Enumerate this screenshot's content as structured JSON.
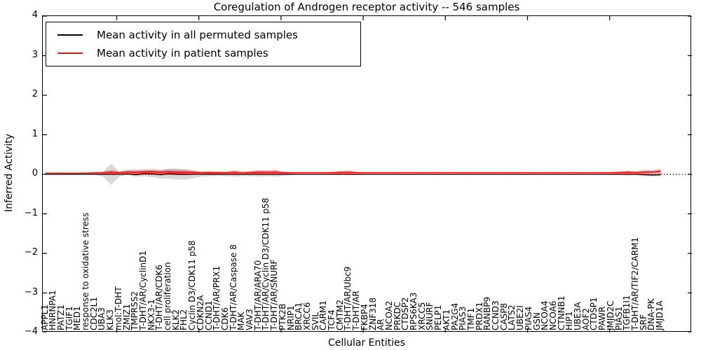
{
  "title": "Coregulation of Androgen receptor activity -- 546 samples",
  "axes": {
    "xlabel": "Cellular Entities",
    "ylabel": "Inferred Activity"
  },
  "legend": {
    "items": [
      {
        "label": "Mean activity in all permuted samples",
        "color": "#000000"
      },
      {
        "label": "Mean activity in patient samples",
        "color": "#ff0000"
      }
    ]
  },
  "chart_data": {
    "type": "line",
    "title": "Coregulation of Androgen receptor activity -- 546 samples",
    "xlabel": "Cellular Entities",
    "ylabel": "Inferred Activity",
    "ylim": [
      -4,
      4
    ],
    "yticks": [
      {
        "v": 4,
        "label": "4"
      },
      {
        "v": 3,
        "label": "3"
      },
      {
        "v": 2,
        "label": "2"
      },
      {
        "v": 1,
        "label": "1"
      },
      {
        "v": 0,
        "label": "0"
      },
      {
        "v": -1,
        "label": "−1"
      },
      {
        "v": -2,
        "label": "−2"
      },
      {
        "v": -3,
        "label": "−3"
      },
      {
        "v": -4,
        "label": "−4"
      }
    ],
    "grid": false,
    "legend_position": "upper left",
    "zero_line": {
      "show": true,
      "style": "dotted",
      "color": "#000000"
    },
    "categories": [
      "APPL1",
      "HNRNPA1",
      "PATZ1",
      "TGIF1",
      "MED1",
      "response to oxidative stress",
      "CDC2L1",
      "UBA3",
      "KLK3",
      "mol:T-DHT",
      "ZMIZ1",
      "TMPRSS2",
      "T-DHT/AR/CyclinD1",
      "NKX3-1",
      "T-DHT/AR/CDK6",
      "cell proliferation",
      "KLK2",
      "FHL2",
      "Cyclin D3/CDK11 p58",
      "CDKN2A",
      "CCND1",
      "T-DHT/AR/PRX1",
      "CDK6",
      "T-DHT/AR/Caspase 8",
      "MAK",
      "VAV3",
      "T-DHT/AR/ARA70",
      "T-DHT/AR/Cyclin D3/CDK11 p58",
      "T-DHT/AR/SNURF",
      "PTK2B",
      "NRIP1",
      "BRCA1",
      "XRCC6",
      "SVIL",
      "CARM1",
      "TCF4",
      "CMTM2",
      "T-DHT/AR/Ubc9",
      "T-DHT/AR",
      "FKBP4",
      "ZNF318",
      "AR",
      "NCOA2",
      "PRKDC",
      "CTDSP2",
      "RPS6KA3",
      "XRCC5",
      "SNURF",
      "PELP1",
      "AKT1",
      "PA2G4",
      "PIAS3",
      "TMF1",
      "PRDX1",
      "RANBP9",
      "CCND3",
      "CASP8",
      "LATS2",
      "UBE2I",
      "PIAS4",
      "GSN",
      "NCOA4",
      "NCOA6",
      "CTNNB1",
      "HIP1",
      "UBE3A",
      "AOF2",
      "CTDSP1",
      "PAWR",
      "JMJD2C",
      "PIAS1",
      "TGFB1I1",
      "T-DHT/AR/TIF2/CARM1",
      "SRF",
      "DNA-PK",
      "JMJD1A"
    ],
    "series": [
      {
        "name": "Mean activity in all permuted samples",
        "color": "#000000",
        "values": [
          0,
          0,
          0,
          0,
          0,
          0,
          0,
          0,
          0,
          0,
          0.01,
          -0.01,
          0.02,
          0.01,
          -0.01,
          0.015,
          0.005,
          -0.005,
          0,
          0,
          0,
          0,
          0,
          0,
          0,
          0,
          0,
          0,
          0,
          0,
          0,
          0,
          0,
          0,
          0,
          0,
          0,
          0,
          0,
          0,
          0,
          0,
          0,
          0,
          0,
          0,
          0,
          0,
          0,
          0,
          0,
          0,
          0,
          0,
          0,
          0,
          0,
          0,
          0,
          0,
          0,
          0,
          0,
          0,
          0,
          0,
          0,
          0,
          0,
          0,
          0,
          0,
          0,
          -0.01,
          -0.02,
          -0.01
        ]
      },
      {
        "name": "Mean activity in patient samples",
        "color": "#ff0000",
        "values": [
          0.03,
          0.03,
          0.03,
          0.03,
          0.03,
          0.03,
          0.035,
          0.04,
          0.05,
          0.04,
          0.06,
          0.05,
          0.06,
          0.06,
          0.05,
          0.06,
          0.05,
          0.05,
          0.045,
          0.04,
          0.04,
          0.04,
          0.04,
          0.05,
          0.04,
          0.045,
          0.05,
          0.05,
          0.055,
          0.04,
          0.04,
          0.04,
          0.04,
          0.04,
          0.04,
          0.04,
          0.045,
          0.05,
          0.04,
          0.04,
          0.04,
          0.04,
          0.04,
          0.04,
          0.04,
          0.04,
          0.04,
          0.04,
          0.04,
          0.04,
          0.04,
          0.04,
          0.04,
          0.04,
          0.04,
          0.04,
          0.04,
          0.04,
          0.04,
          0.04,
          0.04,
          0.04,
          0.04,
          0.04,
          0.04,
          0.04,
          0.04,
          0.04,
          0.04,
          0.04,
          0.045,
          0.05,
          0.045,
          0.055,
          0.06,
          0.075
        ]
      }
    ],
    "bands": {
      "permuted_color": "rgba(0,0,0,0.15)",
      "patient_color_outer": "rgba(255,0,0,0.22)",
      "patient_color_inner": "rgba(255,0,0,0.40)",
      "inner_fraction": 0.5,
      "permuted_halfwidth": [
        0.01,
        0.01,
        0.01,
        0.01,
        0.01,
        0.01,
        0.015,
        0.06,
        0.27,
        0.06,
        0.03,
        0.05,
        0.07,
        0.08,
        0.1,
        0.13,
        0.14,
        0.13,
        0.1,
        0.06,
        0.05,
        0.04,
        0.05,
        0.06,
        0.04,
        0.05,
        0.06,
        0.05,
        0.06,
        0.04,
        0.02,
        0.015,
        0.012,
        0.012,
        0.012,
        0.012,
        0.015,
        0.02,
        0.015,
        0.012,
        0.012,
        0.012,
        0.012,
        0.012,
        0.012,
        0.012,
        0.012,
        0.012,
        0.012,
        0.012,
        0.012,
        0.012,
        0.012,
        0.012,
        0.012,
        0.012,
        0.012,
        0.012,
        0.012,
        0.012,
        0.012,
        0.012,
        0.012,
        0.012,
        0.012,
        0.012,
        0.012,
        0.012,
        0.012,
        0.012,
        0.02,
        0.03,
        0.025,
        0.04,
        0.035,
        0.04
      ],
      "patient_halfwidth": [
        0.015,
        0.015,
        0.015,
        0.015,
        0.015,
        0.015,
        0.02,
        0.03,
        0.06,
        0.04,
        0.06,
        0.08,
        0.07,
        0.08,
        0.075,
        0.07,
        0.08,
        0.07,
        0.05,
        0.035,
        0.05,
        0.035,
        0.03,
        0.06,
        0.025,
        0.045,
        0.065,
        0.055,
        0.065,
        0.035,
        0.02,
        0.02,
        0.02,
        0.02,
        0.02,
        0.03,
        0.05,
        0.05,
        0.03,
        0.02,
        0.02,
        0.02,
        0.02,
        0.02,
        0.02,
        0.02,
        0.02,
        0.02,
        0.02,
        0.02,
        0.02,
        0.02,
        0.02,
        0.02,
        0.02,
        0.02,
        0.02,
        0.02,
        0.02,
        0.02,
        0.02,
        0.02,
        0.02,
        0.02,
        0.02,
        0.02,
        0.02,
        0.02,
        0.02,
        0.025,
        0.035,
        0.05,
        0.035,
        0.06,
        0.045,
        0.07
      ]
    }
  }
}
